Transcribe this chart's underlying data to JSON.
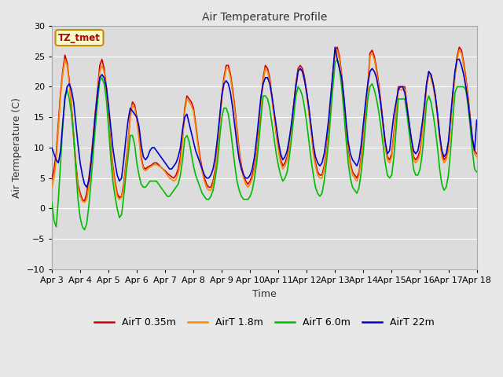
{
  "title": "Air Temperature Profile",
  "xlabel": "Time",
  "ylabel": "Air Termperature (C)",
  "ylim": [
    -10,
    30
  ],
  "fig_facecolor": "#e8e8e8",
  "axes_facecolor": "#dcdcdc",
  "grid_color": "#ffffff",
  "annotation_text": "TZ_tmet",
  "annotation_color": "#aa0000",
  "annotation_bg": "#ffffcc",
  "annotation_border": "#cc8800",
  "series": {
    "AirT 0.35m": {
      "color": "#cc0000",
      "lw": 1.2
    },
    "AirT 1.8m": {
      "color": "#ff8800",
      "lw": 1.2
    },
    "AirT 6.0m": {
      "color": "#00bb00",
      "lw": 1.2
    },
    "AirT 22m": {
      "color": "#0000cc",
      "lw": 1.2
    }
  },
  "x_tick_labels": [
    "Apr 3",
    "Apr 4",
    "Apr 5",
    "Apr 6",
    "Apr 7",
    "Apr 8",
    "Apr 9",
    "Apr 10",
    "Apr 11",
    "Apr 12",
    "Apr 13",
    "Apr 14",
    "Apr 15",
    "Apr 16",
    "Apr 17",
    "Apr 18"
  ],
  "yticks": [
    -10,
    -5,
    0,
    5,
    10,
    15,
    20,
    25,
    30
  ],
  "airt_035": [
    4.8,
    6.5,
    9.0,
    14.0,
    19.0,
    22.5,
    25.2,
    24.0,
    21.0,
    17.0,
    12.0,
    7.5,
    4.0,
    2.5,
    1.5,
    1.2,
    2.5,
    5.0,
    8.0,
    12.0,
    16.0,
    19.5,
    23.5,
    24.5,
    23.0,
    20.0,
    15.5,
    10.5,
    7.0,
    4.5,
    2.5,
    1.8,
    2.0,
    4.0,
    7.5,
    10.8,
    15.5,
    17.5,
    17.0,
    15.0,
    12.0,
    8.5,
    6.8,
    6.5,
    6.8,
    7.0,
    7.2,
    7.5,
    7.5,
    7.2,
    6.8,
    6.5,
    6.2,
    5.8,
    5.5,
    5.2,
    5.0,
    5.5,
    6.5,
    8.5,
    12.0,
    16.5,
    18.5,
    18.0,
    17.5,
    16.5,
    14.0,
    11.0,
    8.5,
    6.5,
    5.0,
    4.0,
    3.5,
    3.5,
    4.5,
    6.5,
    10.0,
    14.5,
    18.5,
    21.5,
    23.5,
    23.5,
    22.0,
    19.5,
    16.5,
    13.0,
    9.5,
    7.0,
    5.5,
    4.5,
    4.0,
    4.5,
    5.5,
    7.0,
    9.5,
    13.0,
    17.5,
    21.5,
    23.5,
    23.0,
    21.5,
    18.5,
    15.5,
    12.5,
    10.0,
    8.0,
    7.0,
    7.5,
    8.5,
    10.5,
    13.5,
    17.0,
    20.5,
    23.0,
    23.5,
    23.0,
    21.5,
    19.0,
    16.0,
    13.0,
    9.5,
    7.5,
    6.0,
    5.5,
    5.5,
    7.0,
    9.5,
    13.0,
    17.5,
    22.0,
    26.0,
    26.5,
    25.0,
    22.0,
    18.0,
    13.5,
    9.5,
    7.5,
    6.0,
    5.5,
    5.0,
    6.0,
    8.5,
    12.0,
    16.5,
    20.0,
    25.5,
    26.0,
    25.0,
    23.0,
    20.5,
    17.5,
    14.0,
    10.5,
    8.5,
    8.0,
    9.0,
    12.5,
    16.0,
    20.0,
    20.0,
    20.0,
    20.0,
    17.0,
    14.0,
    11.0,
    8.5,
    8.0,
    8.5,
    9.5,
    12.5,
    16.5,
    20.5,
    22.5,
    22.0,
    20.5,
    18.5,
    15.5,
    12.0,
    9.0,
    8.0,
    8.5,
    10.0,
    14.0,
    18.5,
    22.0,
    25.0,
    26.5,
    26.0,
    24.0,
    21.5,
    18.5,
    15.0,
    11.5,
    9.5,
    9.0
  ],
  "airt_18": [
    3.5,
    5.0,
    8.0,
    13.0,
    18.5,
    22.0,
    24.5,
    23.5,
    20.5,
    16.5,
    11.5,
    7.0,
    3.5,
    2.0,
    1.2,
    1.0,
    1.5,
    3.5,
    7.0,
    11.5,
    15.5,
    19.0,
    22.5,
    23.5,
    22.5,
    19.5,
    15.0,
    10.0,
    6.5,
    4.0,
    2.0,
    1.5,
    1.8,
    3.5,
    7.0,
    10.5,
    15.0,
    17.0,
    16.5,
    14.5,
    11.5,
    8.0,
    6.5,
    6.2,
    6.5,
    6.8,
    7.0,
    7.2,
    7.2,
    7.0,
    6.8,
    6.5,
    6.0,
    5.5,
    5.0,
    4.8,
    4.5,
    4.8,
    5.8,
    7.5,
    11.0,
    16.0,
    18.0,
    17.5,
    17.0,
    16.0,
    13.5,
    10.5,
    8.0,
    6.0,
    4.5,
    3.5,
    3.0,
    3.0,
    4.0,
    6.0,
    9.5,
    14.0,
    18.0,
    21.0,
    23.0,
    23.0,
    21.5,
    19.0,
    16.0,
    12.5,
    9.0,
    6.5,
    5.0,
    4.0,
    3.5,
    4.0,
    5.0,
    6.5,
    9.0,
    12.5,
    17.0,
    21.0,
    23.0,
    22.5,
    21.0,
    18.0,
    15.0,
    12.0,
    9.5,
    7.5,
    6.5,
    7.0,
    8.0,
    10.0,
    13.0,
    16.5,
    20.0,
    22.5,
    23.0,
    22.5,
    21.0,
    18.5,
    15.5,
    12.5,
    9.0,
    7.0,
    5.5,
    5.0,
    5.0,
    6.5,
    9.0,
    12.5,
    17.0,
    21.5,
    25.5,
    26.0,
    24.5,
    21.5,
    17.5,
    13.0,
    9.0,
    7.0,
    5.5,
    5.0,
    4.5,
    5.5,
    8.0,
    11.5,
    16.0,
    19.5,
    25.0,
    25.5,
    24.5,
    22.5,
    20.0,
    17.0,
    13.5,
    10.0,
    8.0,
    7.5,
    8.5,
    12.0,
    15.5,
    19.5,
    19.5,
    19.5,
    19.5,
    16.5,
    13.5,
    10.5,
    8.0,
    7.5,
    8.0,
    9.0,
    12.0,
    16.0,
    20.0,
    22.0,
    21.5,
    20.0,
    18.0,
    15.0,
    11.5,
    8.5,
    7.5,
    8.0,
    9.5,
    13.5,
    18.0,
    21.5,
    24.5,
    26.0,
    25.5,
    23.5,
    21.0,
    18.0,
    14.5,
    11.0,
    9.0,
    8.5
  ],
  "airt_60": [
    1.0,
    -2.0,
    -3.0,
    1.5,
    7.5,
    13.5,
    18.5,
    19.5,
    18.0,
    15.5,
    12.0,
    6.5,
    1.5,
    -1.5,
    -3.0,
    -3.5,
    -2.5,
    0.5,
    4.5,
    9.0,
    13.5,
    17.5,
    21.0,
    21.5,
    20.5,
    18.0,
    13.5,
    8.5,
    4.5,
    2.0,
    0.0,
    -1.5,
    -1.0,
    2.0,
    5.5,
    8.5,
    12.0,
    12.0,
    10.5,
    7.5,
    5.5,
    4.0,
    3.5,
    3.5,
    4.0,
    4.5,
    4.5,
    4.5,
    4.5,
    4.0,
    3.5,
    3.0,
    2.5,
    2.0,
    2.0,
    2.5,
    3.0,
    3.5,
    4.0,
    5.5,
    8.0,
    11.5,
    12.0,
    11.0,
    9.0,
    7.0,
    5.5,
    4.5,
    3.5,
    2.5,
    2.0,
    1.5,
    1.5,
    2.0,
    3.0,
    5.0,
    7.5,
    11.5,
    15.0,
    16.5,
    16.5,
    15.5,
    13.0,
    10.0,
    7.0,
    4.5,
    3.0,
    2.0,
    1.5,
    1.5,
    1.5,
    2.0,
    3.0,
    5.0,
    7.5,
    11.0,
    15.0,
    18.5,
    18.5,
    18.0,
    16.5,
    14.0,
    11.5,
    9.0,
    7.0,
    5.5,
    4.5,
    5.0,
    6.0,
    8.5,
    11.5,
    15.0,
    18.5,
    20.0,
    19.5,
    18.5,
    16.5,
    14.0,
    11.0,
    8.0,
    5.5,
    3.5,
    2.5,
    2.0,
    2.5,
    4.5,
    7.5,
    11.0,
    15.5,
    20.0,
    24.0,
    24.5,
    23.0,
    20.0,
    16.0,
    11.5,
    7.5,
    5.0,
    3.5,
    3.0,
    2.5,
    3.5,
    6.0,
    9.5,
    14.0,
    18.0,
    20.0,
    20.5,
    19.5,
    18.0,
    16.0,
    13.5,
    10.5,
    7.5,
    5.5,
    5.0,
    5.5,
    8.5,
    13.0,
    18.0,
    18.0,
    18.0,
    18.0,
    15.5,
    12.5,
    9.5,
    6.5,
    5.5,
    5.5,
    6.5,
    9.0,
    13.0,
    17.5,
    18.5,
    17.5,
    15.5,
    13.0,
    10.0,
    6.5,
    4.0,
    3.0,
    3.5,
    5.5,
    9.5,
    14.5,
    19.0,
    20.0,
    20.0,
    20.0,
    20.0,
    19.5,
    17.0,
    13.5,
    9.5,
    6.5,
    6.0
  ],
  "airt_22": [
    10.0,
    9.0,
    8.0,
    7.5,
    9.5,
    14.0,
    18.0,
    20.0,
    20.5,
    19.5,
    17.5,
    14.0,
    10.5,
    7.5,
    5.5,
    4.0,
    3.5,
    4.5,
    7.5,
    11.5,
    15.5,
    19.0,
    21.5,
    22.0,
    21.5,
    20.0,
    17.0,
    13.5,
    10.0,
    7.5,
    5.5,
    4.5,
    5.0,
    8.0,
    11.5,
    14.5,
    16.5,
    16.0,
    15.5,
    15.0,
    13.5,
    10.5,
    8.5,
    8.0,
    8.5,
    9.5,
    10.0,
    10.0,
    9.5,
    9.0,
    8.5,
    8.0,
    7.5,
    7.0,
    6.5,
    6.5,
    7.0,
    7.5,
    8.5,
    10.0,
    13.0,
    15.0,
    15.5,
    14.0,
    12.5,
    11.0,
    9.5,
    8.5,
    7.5,
    6.5,
    5.5,
    5.0,
    5.0,
    5.5,
    6.5,
    8.5,
    11.5,
    15.0,
    18.5,
    20.5,
    21.0,
    20.5,
    19.0,
    16.5,
    13.5,
    10.5,
    8.0,
    6.5,
    5.5,
    5.0,
    5.0,
    5.5,
    6.5,
    8.5,
    11.5,
    15.0,
    18.5,
    20.5,
    21.5,
    21.5,
    20.5,
    18.5,
    16.0,
    13.5,
    11.0,
    9.0,
    8.0,
    8.5,
    9.5,
    11.5,
    14.0,
    17.0,
    20.0,
    22.5,
    23.0,
    22.5,
    21.0,
    19.0,
    16.5,
    13.5,
    10.5,
    8.5,
    7.5,
    7.0,
    7.5,
    9.0,
    11.5,
    14.5,
    18.5,
    22.5,
    26.5,
    24.5,
    23.0,
    21.5,
    18.5,
    14.5,
    11.0,
    9.0,
    8.0,
    7.5,
    7.0,
    8.0,
    10.5,
    14.0,
    17.5,
    20.5,
    22.5,
    23.0,
    22.5,
    21.5,
    19.5,
    17.0,
    14.0,
    11.0,
    9.0,
    9.5,
    12.5,
    15.5,
    17.5,
    19.5,
    20.0,
    20.0,
    19.0,
    16.5,
    14.0,
    11.5,
    9.5,
    9.0,
    9.5,
    11.5,
    14.0,
    17.0,
    20.5,
    22.5,
    22.0,
    20.5,
    18.5,
    15.5,
    12.0,
    9.5,
    8.5,
    9.0,
    11.0,
    15.0,
    19.0,
    22.5,
    24.5,
    24.5,
    23.5,
    22.0,
    20.0,
    17.5,
    14.5,
    11.5,
    9.5,
    14.5
  ]
}
